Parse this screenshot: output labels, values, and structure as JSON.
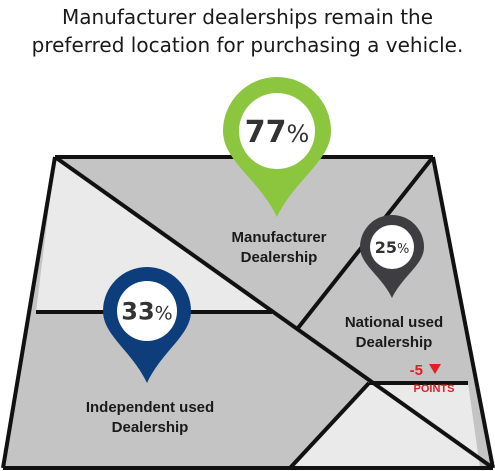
{
  "title_line1": "Manufacturer dealerships remain the",
  "title_line2": "preferred location for purchasing a vehicle.",
  "colors": {
    "manufacturer": "#8cc63f",
    "independent": "#0d3d7a",
    "national": "#3e3e42",
    "map_dark": "#c4c4c4",
    "map_light": "#eaeaea",
    "stroke": "#111111",
    "negative": "#e31e24"
  },
  "chart_data": {
    "type": "infographic",
    "title": "Manufacturer dealerships remain the preferred location for purchasing a vehicle.",
    "series": [
      {
        "name": "Manufacturer Dealership",
        "label_lines": [
          "Manufacturer",
          "Dealership"
        ],
        "value": 77,
        "value_text": "77",
        "unit": "%"
      },
      {
        "name": "Independent used Dealership",
        "label_lines": [
          "Independent used",
          "Dealership"
        ],
        "value": 33,
        "value_text": "33",
        "unit": "%"
      },
      {
        "name": "National used Dealership",
        "label_lines": [
          "National used",
          "Dealership"
        ],
        "value": 25,
        "value_text": "25",
        "unit": "%",
        "change_value": -5,
        "change_text": "-5",
        "change_unit": "POINTS"
      }
    ]
  }
}
